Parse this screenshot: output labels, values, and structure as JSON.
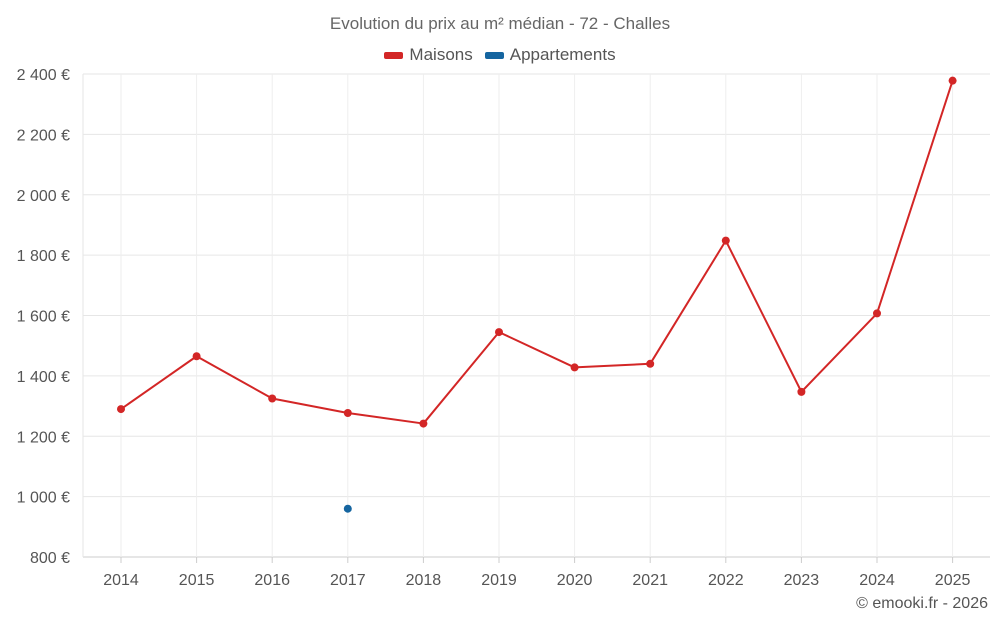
{
  "chart_data": {
    "type": "line",
    "title": "Evolution du prix au m² médian - 72 - Challes",
    "categories": [
      "2014",
      "2015",
      "2016",
      "2017",
      "2018",
      "2019",
      "2020",
      "2021",
      "2022",
      "2023",
      "2024",
      "2025"
    ],
    "series": [
      {
        "name": "Maisons",
        "color": "#d32626",
        "values": [
          1290,
          1465,
          1325,
          1277,
          1242,
          1545,
          1428,
          1440,
          1848,
          1347,
          1607,
          2378
        ]
      },
      {
        "name": "Appartements",
        "color": "#1565a0",
        "values": [
          null,
          null,
          null,
          960,
          null,
          null,
          null,
          null,
          null,
          null,
          null,
          null
        ]
      }
    ],
    "ylim": [
      800,
      2400
    ],
    "yticks": [
      800,
      1000,
      1200,
      1400,
      1600,
      1800,
      2000,
      2200,
      2400
    ],
    "ytick_labels": [
      "800 €",
      "1 000 €",
      "1 200 €",
      "1 400 €",
      "1 600 €",
      "1 800 €",
      "2 000 €",
      "2 200 €",
      "2 400 €"
    ],
    "xlabel": "",
    "ylabel": "",
    "grid": true,
    "legend_position": "top-center"
  },
  "credit": "© emooki.fr - 2026"
}
